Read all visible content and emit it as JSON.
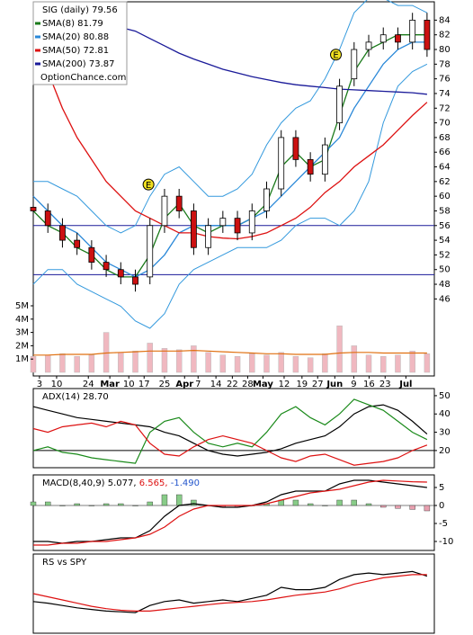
{
  "chart_data": [
    {
      "type": "candlestick",
      "title": "SIG (daily) 79.56",
      "watermark": "OptionChance.com",
      "x": [
        0,
        4,
        8,
        12,
        16,
        20,
        24,
        28,
        32,
        36,
        40,
        44,
        48,
        52,
        56,
        60,
        64,
        68,
        72,
        76,
        80,
        84,
        88,
        92,
        96,
        100,
        104,
        108
      ],
      "xlim": [
        0,
        110
      ],
      "xticks": [
        {
          "value": 1.7,
          "label": "3"
        },
        {
          "value": 6.4,
          "label": "10"
        },
        {
          "value": 15.1,
          "label": "24"
        },
        {
          "value": 21,
          "label": "Mar"
        },
        {
          "value": 26.2,
          "label": "10"
        },
        {
          "value": 30.4,
          "label": "17"
        },
        {
          "value": 36,
          "label": "25"
        },
        {
          "value": 41.5,
          "label": "Apr"
        },
        {
          "value": 45.2,
          "label": "7"
        },
        {
          "value": 50.1,
          "label": "14"
        },
        {
          "value": 54.6,
          "label": "22"
        },
        {
          "value": 58.8,
          "label": "28"
        },
        {
          "value": 63,
          "label": "May"
        },
        {
          "value": 68.8,
          "label": "12"
        },
        {
          "value": 73.7,
          "label": "19"
        },
        {
          "value": 78,
          "label": "27"
        },
        {
          "value": 82.7,
          "label": "Jun"
        },
        {
          "value": 87.9,
          "label": "9"
        },
        {
          "value": 92.1,
          "label": "16"
        },
        {
          "value": 96.5,
          "label": "23"
        },
        {
          "value": 102.2,
          "label": "Jul"
        }
      ],
      "ylim": [
        35.5,
        86.5
      ],
      "yticks": [
        46,
        48,
        50,
        52,
        54,
        56,
        58,
        60,
        62,
        64,
        66,
        68,
        70,
        72,
        74,
        76,
        78,
        80,
        82,
        84
      ],
      "open": [
        58.5,
        58,
        56,
        54,
        53,
        51,
        50,
        49,
        49,
        56,
        60,
        58,
        53,
        56,
        57,
        55,
        58,
        61,
        68,
        65,
        63,
        70,
        76,
        80,
        81,
        82,
        81,
        84
      ],
      "high": [
        59.5,
        59,
        57,
        55,
        54,
        52,
        51,
        50,
        57,
        61,
        61,
        59,
        57,
        58,
        58,
        59,
        62,
        69,
        69,
        66,
        68,
        76,
        81,
        82,
        83,
        83,
        85,
        85
      ],
      "low": [
        57,
        55,
        53,
        52,
        50,
        49,
        48,
        47,
        48,
        55,
        57,
        52,
        52,
        55,
        54,
        54,
        57,
        60,
        64,
        62,
        62,
        69,
        75,
        79,
        80,
        80,
        80,
        79
      ],
      "close": [
        58,
        56,
        54,
        53,
        51,
        50,
        49,
        48,
        56,
        60,
        58,
        53,
        56,
        57,
        55,
        58,
        61,
        68,
        65,
        63,
        67,
        75,
        80,
        81,
        82,
        81,
        84,
        80
      ],
      "up_color": "#ffffff",
      "down_color": "#cc1111",
      "series": [
        {
          "name": "SMA(8) 81.79",
          "color": "#1a7a1a",
          "values": [
            58,
            56,
            55,
            53,
            52,
            50,
            49,
            49,
            52,
            57,
            59,
            56,
            55,
            56,
            56,
            57,
            59,
            64,
            66,
            64,
            65,
            71,
            77,
            80,
            81,
            82,
            82,
            82
          ]
        },
        {
          "name": "SMA(20) 80.88",
          "color": "#2a88d8",
          "values": [
            60,
            58,
            56,
            55,
            53,
            51,
            50,
            49,
            50,
            52,
            55,
            56,
            56,
            56,
            56,
            57,
            58,
            60,
            62,
            64,
            66,
            68,
            72,
            75,
            78,
            80,
            81,
            81
          ]
        },
        {
          "name": "SMA(50) 72.81",
          "color": "#dd1111",
          "values": [
            80,
            77,
            72,
            68,
            65,
            62,
            60,
            58,
            57,
            56,
            55,
            55,
            54.5,
            54.3,
            54.2,
            54.5,
            55,
            56,
            57,
            58.5,
            60.5,
            62,
            64,
            65.5,
            67,
            69,
            71,
            72.8
          ]
        },
        {
          "name": "SMA(200) 73.87",
          "color": "#1a1a99",
          "values": [
            null,
            null,
            null,
            null,
            null,
            null,
            83,
            82.5,
            81.5,
            80.5,
            79.5,
            78.7,
            78,
            77.3,
            76.8,
            76.3,
            75.9,
            75.5,
            75.2,
            75,
            74.8,
            74.6,
            74.5,
            74.4,
            74.3,
            74.2,
            74.1,
            73.9
          ]
        }
      ],
      "bands": {
        "color": "#3399dd",
        "upper": [
          62,
          62,
          61,
          60,
          58,
          56,
          55,
          56,
          60,
          63,
          64,
          62,
          60,
          60,
          61,
          63,
          67,
          70,
          72,
          73,
          76,
          80,
          85,
          87,
          87,
          86,
          86,
          85
        ],
        "lower": [
          48,
          50,
          50,
          48,
          47,
          46,
          45,
          43,
          42,
          44,
          48,
          50,
          51,
          52,
          53,
          53,
          53,
          54,
          56,
          57,
          57,
          56,
          58,
          62,
          70,
          75,
          77,
          78
        ]
      },
      "hlines": [
        56,
        49.3
      ],
      "hline_color": "#1a1a99",
      "events": [
        {
          "label": "E",
          "x": 31.6,
          "y": 61.6
        },
        {
          "label": "E",
          "x": 83,
          "y": 79.3
        }
      ],
      "volume": {
        "color": "#f0b8c0",
        "average_color": "#e07010",
        "ylim": [
          0,
          5
        ],
        "yticks": [
          {
            "value": 1,
            "label": "1M"
          },
          {
            "value": 2,
            "label": "2M"
          },
          {
            "value": 3,
            "label": "3M"
          },
          {
            "value": 4,
            "label": "4M"
          },
          {
            "value": 5,
            "label": "5M"
          }
        ],
        "values": [
          1.2,
          1.3,
          1.4,
          1.2,
          1.3,
          3.0,
          1.5,
          1.6,
          2.2,
          1.8,
          1.7,
          2.0,
          1.5,
          1.3,
          1.2,
          1.4,
          1.3,
          1.5,
          1.2,
          1.1,
          1.4,
          3.5,
          2.0,
          1.3,
          1.2,
          1.3,
          1.6,
          1.4
        ],
        "average": [
          1.3,
          1.3,
          1.35,
          1.35,
          1.35,
          1.45,
          1.5,
          1.55,
          1.6,
          1.6,
          1.6,
          1.65,
          1.6,
          1.55,
          1.5,
          1.45,
          1.4,
          1.4,
          1.35,
          1.35,
          1.35,
          1.45,
          1.5,
          1.5,
          1.45,
          1.45,
          1.45,
          1.45
        ]
      }
    },
    {
      "type": "line",
      "title": "ADX(14) 28.70",
      "ylim": [
        10.6,
        53.9
      ],
      "yticks": [
        20,
        30,
        40,
        50
      ],
      "hlines": [
        20
      ],
      "series": [
        {
          "color": "#000000",
          "values": [
            44,
            42,
            40,
            38,
            37,
            36,
            35,
            34,
            33,
            30,
            28,
            24,
            20,
            18,
            17,
            18,
            19,
            21,
            24,
            26,
            28,
            33,
            40,
            44,
            45,
            42,
            36,
            29
          ]
        },
        {
          "color": "#1a8a1a",
          "values": [
            20,
            22,
            19,
            18,
            16,
            15,
            14,
            13,
            30,
            36,
            38,
            30,
            24,
            22,
            24,
            22,
            30,
            40,
            44,
            38,
            34,
            40,
            48,
            45,
            42,
            36,
            30,
            26
          ]
        },
        {
          "color": "#dd1111",
          "values": [
            32,
            30,
            33,
            34,
            35,
            33,
            36,
            34,
            24,
            18,
            17,
            22,
            26,
            28,
            26,
            24,
            20,
            16,
            14,
            17,
            18,
            15,
            12,
            13,
            14,
            16,
            20,
            23
          ]
        }
      ]
    },
    {
      "type": "macd",
      "title": "MACD(8,40,9) 5.077,",
      "signal_label": "6.565,",
      "hist_label": "-1.490",
      "ylim": [
        -12.5,
        8.5
      ],
      "yticks": [
        -10,
        -5,
        0,
        5
      ],
      "series": [
        {
          "color": "#000000",
          "values": [
            -10,
            -10,
            -10.5,
            -10,
            -10,
            -9.5,
            -9,
            -9,
            -7,
            -3,
            0,
            0.5,
            0,
            -0.5,
            -0.5,
            0,
            1,
            3,
            4,
            4,
            4,
            6,
            7,
            7,
            6.5,
            6,
            5.5,
            5
          ]
        },
        {
          "color": "#dd1111",
          "values": [
            -11,
            -11,
            -10.5,
            -10.5,
            -10,
            -10,
            -9.5,
            -9,
            -8,
            -6,
            -3,
            -1,
            0,
            0,
            0,
            0,
            0.5,
            1.5,
            2.5,
            3.5,
            4,
            4.5,
            5.5,
            6.5,
            7,
            6.8,
            6.6,
            6.5
          ]
        }
      ],
      "histogram": {
        "color": "#88cc88",
        "neg_color": "#e8a0b0",
        "values": [
          1,
          1,
          0,
          0.5,
          0,
          0.5,
          0.5,
          0,
          1,
          3,
          3,
          1.5,
          0,
          -0.5,
          -0.5,
          0,
          0.5,
          1.5,
          1.5,
          0.5,
          0,
          1.5,
          1.5,
          0.5,
          -0.5,
          -0.8,
          -1.1,
          -1.5
        ]
      }
    },
    {
      "type": "line",
      "title": "RS vs SPY",
      "ylim": [
        0,
        100
      ],
      "series": [
        {
          "color": "#000000",
          "values": [
            40,
            38,
            35,
            32,
            30,
            28,
            27,
            26,
            35,
            40,
            42,
            38,
            40,
            42,
            40,
            44,
            48,
            58,
            55,
            55,
            58,
            68,
            74,
            76,
            74,
            76,
            78,
            72
          ]
        },
        {
          "color": "#dd1111",
          "values": [
            50,
            46,
            42,
            38,
            34,
            31,
            29,
            28,
            28,
            30,
            32,
            34,
            36,
            38,
            39,
            40,
            42,
            45,
            48,
            50,
            52,
            56,
            62,
            66,
            70,
            72,
            74,
            74
          ]
        }
      ]
    }
  ]
}
